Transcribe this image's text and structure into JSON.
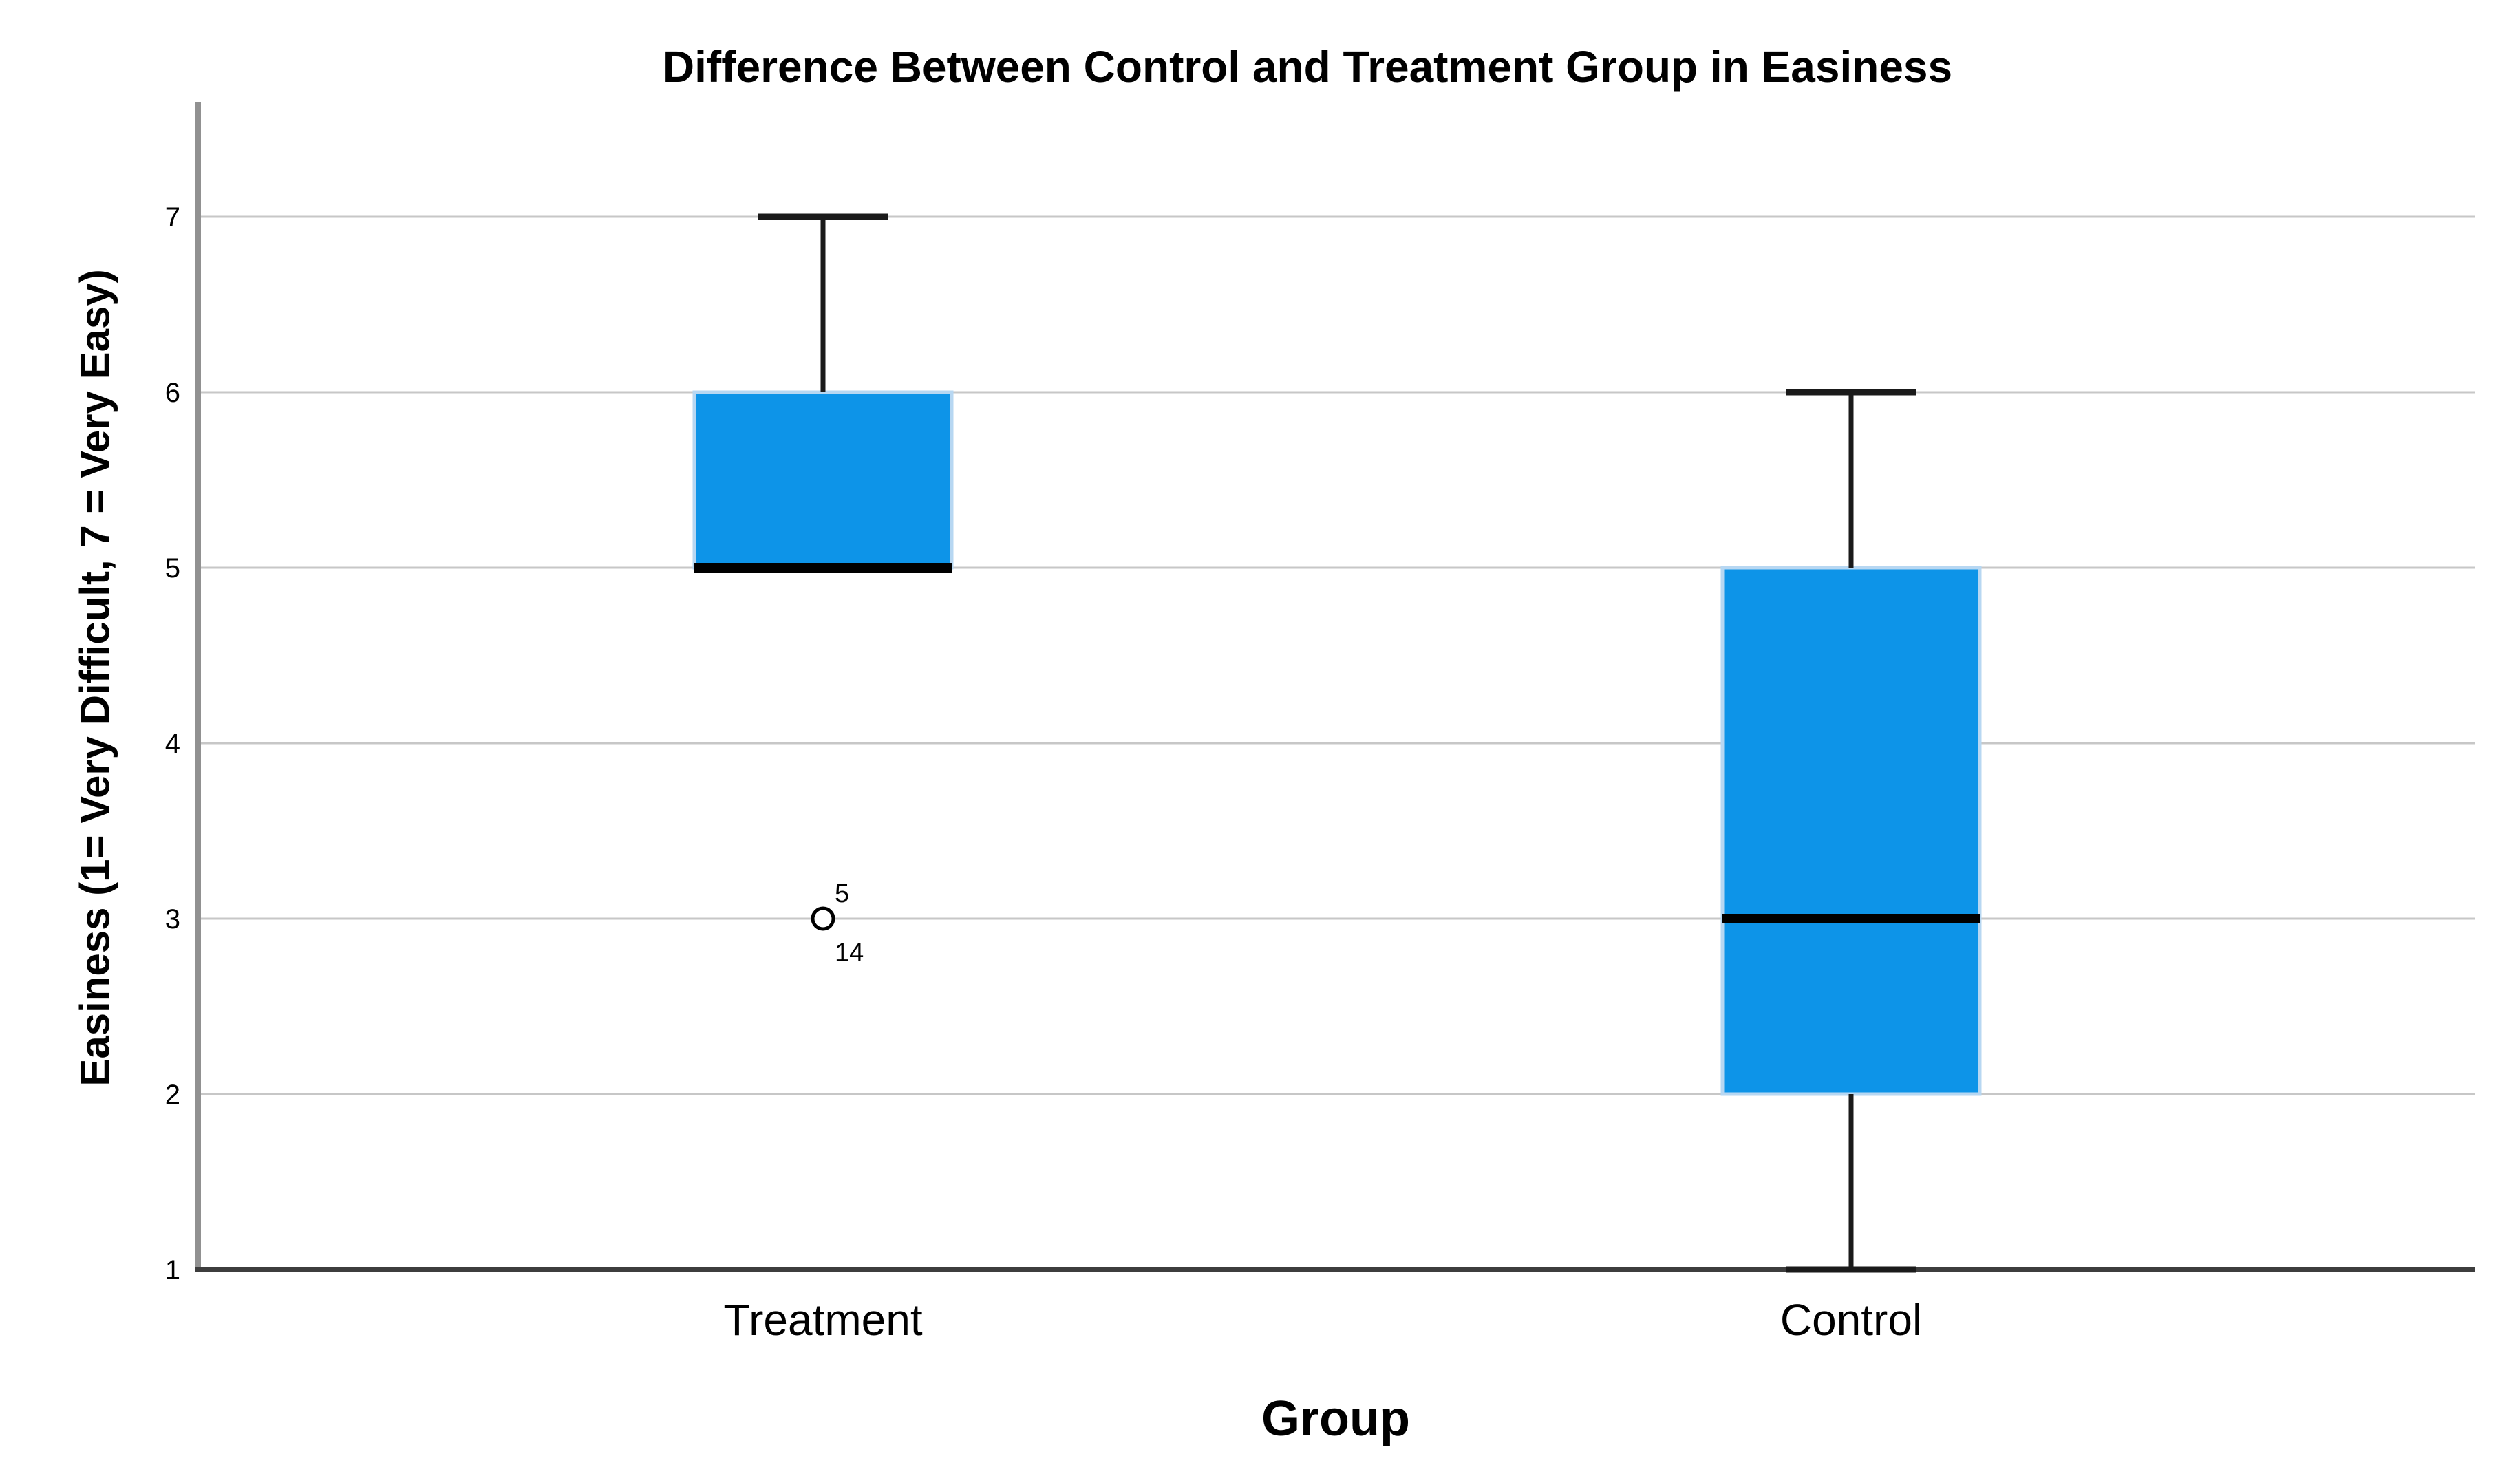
{
  "figure": {
    "background": "#ffffff"
  },
  "chart_data": {
    "type": "boxplot",
    "title": "Difference Between Control and Treatment Group in Easiness",
    "xlabel": "Group",
    "ylabel": "Easiness (1= Very Difficult, 7 = Very Easy)",
    "ylim": [
      1,
      7
    ],
    "yticks": [
      1,
      2,
      3,
      4,
      5,
      6,
      7
    ],
    "grid": "horizontal-light-gray",
    "legend": "none",
    "categories": [
      "Treatment",
      "Control"
    ],
    "series": [
      {
        "name": "Treatment",
        "q1": 5,
        "median": 5,
        "q3": 6,
        "whisker_low": 5,
        "whisker_high": 7,
        "outliers": [
          {
            "value": 3,
            "case_labels": [
              "5",
              "14"
            ]
          }
        ]
      },
      {
        "name": "Control",
        "q1": 2,
        "median": 3,
        "q3": 5,
        "whisker_low": 1,
        "whisker_high": 6,
        "outliers": []
      }
    ],
    "colors": {
      "box_fill": "#0d94e8",
      "box_edge": "#b7d7f2",
      "median_line": "#000000",
      "whisker_line": "#1a1a1a",
      "gridline": "#c7c7c7",
      "y_axis_line": "#919191",
      "x_axis_line": "#3d3d3d",
      "text": "#000000",
      "outlier_stroke": "#000000",
      "outlier_fill": "#ffffff"
    }
  }
}
